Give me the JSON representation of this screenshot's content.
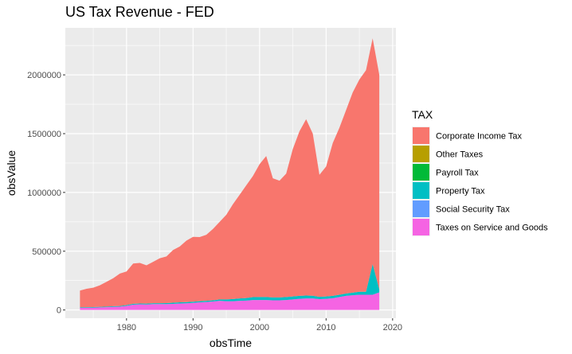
{
  "chart_data": {
    "type": "area",
    "stacked": true,
    "title": "US Tax Revenue - FED",
    "xlabel": "obsTime",
    "ylabel": "obsValue",
    "xlim": [
      1970.8,
      2020.5
    ],
    "ylim": [
      -70000,
      2400000
    ],
    "xticks": [
      1980,
      1990,
      2000,
      2010,
      2020
    ],
    "yticks": [
      0,
      500000,
      1000000,
      1500000,
      2000000
    ],
    "ytick_labels": [
      "0",
      "500000",
      "1000000",
      "1500000",
      "2000000"
    ],
    "grid": true,
    "legend": {
      "title": "TAX",
      "position": "right"
    },
    "x": [
      1973,
      1974,
      1975,
      1976,
      1977,
      1978,
      1979,
      1980,
      1981,
      1982,
      1983,
      1984,
      1985,
      1986,
      1987,
      1988,
      1989,
      1990,
      1991,
      1992,
      1993,
      1994,
      1995,
      1996,
      1997,
      1998,
      1999,
      2000,
      2001,
      2002,
      2003,
      2004,
      2005,
      2006,
      2007,
      2008,
      2009,
      2010,
      2011,
      2012,
      2013,
      2014,
      2015,
      2016,
      2017,
      2018
    ],
    "series": [
      {
        "name": "Taxes on Service and Goods",
        "color": "#F564E3",
        "values": [
          18000,
          19000,
          20000,
          22000,
          24000,
          26000,
          28000,
          35000,
          45000,
          48000,
          47000,
          50000,
          50000,
          50000,
          52000,
          55000,
          57000,
          60000,
          65000,
          68000,
          72000,
          78000,
          75000,
          75000,
          78000,
          80000,
          85000,
          85000,
          85000,
          82000,
          82000,
          85000,
          90000,
          95000,
          98000,
          98000,
          92000,
          95000,
          100000,
          110000,
          120000,
          125000,
          130000,
          130000,
          130000,
          150000
        ]
      },
      {
        "name": "Social Security Tax",
        "color": "#619CFF",
        "values": [
          0,
          0,
          0,
          0,
          0,
          0,
          0,
          0,
          0,
          0,
          0,
          0,
          0,
          0,
          0,
          0,
          0,
          0,
          0,
          0,
          0,
          0,
          0,
          0,
          0,
          0,
          0,
          0,
          0,
          0,
          0,
          0,
          0,
          0,
          0,
          0,
          0,
          0,
          0,
          0,
          0,
          0,
          0,
          0,
          0,
          0
        ]
      },
      {
        "name": "Property Tax",
        "color": "#00BFC4",
        "values": [
          5000,
          5000,
          5000,
          5000,
          5000,
          6000,
          6000,
          7000,
          8000,
          7000,
          7000,
          8000,
          8000,
          9000,
          10000,
          10000,
          10000,
          10000,
          10000,
          10000,
          10000,
          12000,
          15000,
          18000,
          20000,
          22000,
          24000,
          25000,
          25000,
          25000,
          25000,
          25000,
          25000,
          25000,
          25000,
          23000,
          20000,
          20000,
          20000,
          20000,
          20000,
          22000,
          25000,
          25000,
          260000,
          25000
        ]
      },
      {
        "name": "Payroll Tax",
        "color": "#00BA38",
        "values": [
          0,
          0,
          0,
          0,
          0,
          0,
          0,
          0,
          0,
          0,
          0,
          0,
          0,
          0,
          0,
          0,
          0,
          0,
          0,
          0,
          0,
          0,
          0,
          0,
          0,
          0,
          0,
          0,
          0,
          0,
          0,
          0,
          0,
          0,
          0,
          0,
          0,
          0,
          0,
          0,
          0,
          0,
          0,
          0,
          0,
          0
        ]
      },
      {
        "name": "Other Taxes",
        "color": "#B79F00",
        "values": [
          0,
          0,
          0,
          0,
          0,
          0,
          0,
          0,
          0,
          0,
          0,
          0,
          0,
          0,
          0,
          0,
          0,
          0,
          0,
          0,
          0,
          0,
          0,
          0,
          0,
          0,
          0,
          0,
          0,
          0,
          0,
          0,
          0,
          0,
          0,
          0,
          0,
          0,
          0,
          0,
          0,
          0,
          0,
          0,
          0,
          0
        ]
      },
      {
        "name": "Corporate Income Tax",
        "color": "#F8766D",
        "values": [
          142000,
          156000,
          165000,
          183000,
          211000,
          238000,
          276000,
          286000,
          342000,
          345000,
          326000,
          352000,
          382000,
          396000,
          448000,
          475000,
          523000,
          552000,
          545000,
          562000,
          608000,
          660000,
          720000,
          807000,
          882000,
          958000,
          1031000,
          1130000,
          1200000,
          1013000,
          993000,
          1050000,
          1255000,
          1400000,
          1500000,
          1379000,
          1038000,
          1105000,
          1300000,
          1420000,
          1560000,
          1703000,
          1805000,
          1885000,
          1920000,
          1825000
        ]
      }
    ]
  }
}
